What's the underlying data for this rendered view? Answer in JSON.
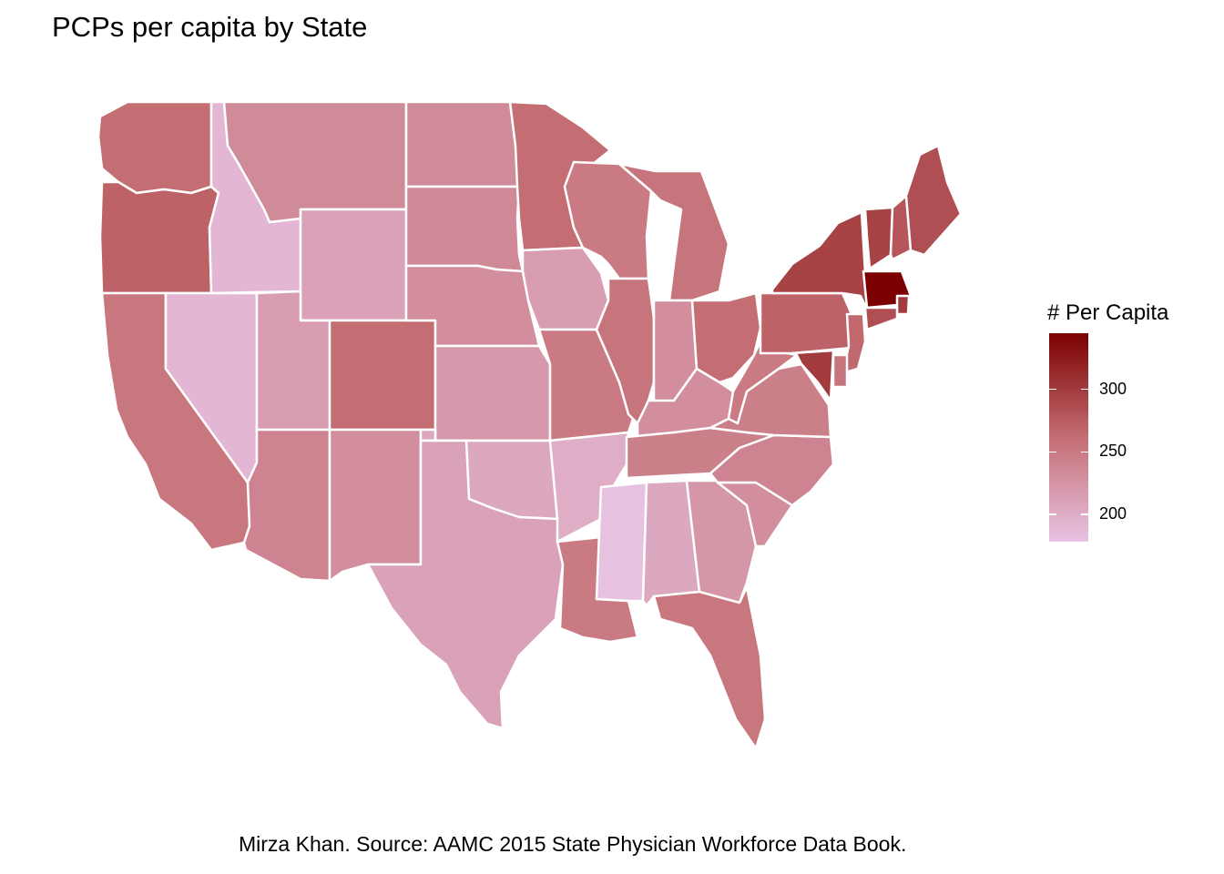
{
  "title": "PCPs per capita by State",
  "caption": "Mirza Khan. Source: AAMC 2015 State Physician Workforce Data Book.",
  "legend": {
    "title": "# Per Capita",
    "min": 178,
    "max": 345,
    "low_color": "#e8c3e3",
    "high_color": "#7b0000",
    "ticks": [
      {
        "value": 200,
        "label": "200"
      },
      {
        "value": 250,
        "label": "250"
      },
      {
        "value": 300,
        "label": "300"
      }
    ]
  },
  "states": [
    {
      "abbr": "WA",
      "value": 262
    },
    {
      "abbr": "OR",
      "value": 270
    },
    {
      "abbr": "CA",
      "value": 253
    },
    {
      "abbr": "ID",
      "value": 190
    },
    {
      "abbr": "NV",
      "value": 190
    },
    {
      "abbr": "MT",
      "value": 233
    },
    {
      "abbr": "WY",
      "value": 210
    },
    {
      "abbr": "UT",
      "value": 215
    },
    {
      "abbr": "AZ",
      "value": 240
    },
    {
      "abbr": "CO",
      "value": 262
    },
    {
      "abbr": "NM",
      "value": 230
    },
    {
      "abbr": "ND",
      "value": 233
    },
    {
      "abbr": "SD",
      "value": 235
    },
    {
      "abbr": "NE",
      "value": 230
    },
    {
      "abbr": "KS",
      "value": 220
    },
    {
      "abbr": "OK",
      "value": 205
    },
    {
      "abbr": "TX",
      "value": 210
    },
    {
      "abbr": "MN",
      "value": 262
    },
    {
      "abbr": "IA",
      "value": 215
    },
    {
      "abbr": "MO",
      "value": 250
    },
    {
      "abbr": "AR",
      "value": 200
    },
    {
      "abbr": "LA",
      "value": 250
    },
    {
      "abbr": "WI",
      "value": 250
    },
    {
      "abbr": "IL",
      "value": 255
    },
    {
      "abbr": "MI",
      "value": 255
    },
    {
      "abbr": "IN",
      "value": 230
    },
    {
      "abbr": "OH",
      "value": 262
    },
    {
      "abbr": "KY",
      "value": 230
    },
    {
      "abbr": "TN",
      "value": 245
    },
    {
      "abbr": "MS",
      "value": 180
    },
    {
      "abbr": "AL",
      "value": 205
    },
    {
      "abbr": "GA",
      "value": 222
    },
    {
      "abbr": "FL",
      "value": 253
    },
    {
      "abbr": "SC",
      "value": 230
    },
    {
      "abbr": "NC",
      "value": 240
    },
    {
      "abbr": "VA",
      "value": 245
    },
    {
      "abbr": "WV",
      "value": 250
    },
    {
      "abbr": "PA",
      "value": 270
    },
    {
      "abbr": "NY",
      "value": 295
    },
    {
      "abbr": "VT",
      "value": 295
    },
    {
      "abbr": "NH",
      "value": 280
    },
    {
      "abbr": "ME",
      "value": 285
    },
    {
      "abbr": "MA",
      "value": 345
    },
    {
      "abbr": "RI",
      "value": 300
    },
    {
      "abbr": "CT",
      "value": 285
    },
    {
      "abbr": "NJ",
      "value": 265
    },
    {
      "abbr": "DE",
      "value": 255
    },
    {
      "abbr": "MD",
      "value": 300
    }
  ]
}
